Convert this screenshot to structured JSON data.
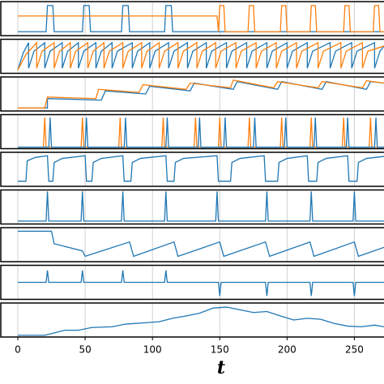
{
  "chart_data": [
    {
      "type": "line",
      "xlim": [
        0,
        272
      ],
      "ylim": [
        -0.15,
        1.15
      ],
      "xticks": [
        0,
        50,
        100,
        150,
        200,
        250
      ],
      "grid": true,
      "series": [
        {
          "color": "#1f77b4",
          "x": [
            0,
            21,
            22,
            26,
            27,
            48,
            49,
            53,
            54,
            77,
            78,
            82,
            83,
            109,
            110,
            114,
            115,
            272
          ],
          "values": [
            0,
            0,
            1,
            1,
            0,
            0,
            1,
            1,
            0,
            0,
            1,
            1,
            0,
            0,
            1,
            1,
            0,
            0
          ]
        },
        {
          "color": "#ff7f0e",
          "x": [
            0,
            148,
            149,
            150,
            153,
            154,
            171,
            172,
            175,
            176,
            195,
            196,
            199,
            200,
            217,
            218,
            221,
            222,
            242,
            243,
            246,
            247,
            264,
            265,
            268,
            269,
            272
          ],
          "values": [
            0.6,
            0.6,
            0,
            1,
            1,
            0,
            0,
            1,
            1,
            0,
            0,
            1,
            1,
            0,
            0,
            1,
            1,
            0,
            0,
            1,
            1,
            0,
            0,
            1,
            1,
            0,
            0
          ]
        }
      ]
    },
    {
      "type": "line",
      "xlim": [
        0,
        272
      ],
      "ylim": [
        0,
        1
      ],
      "xticks": [
        0,
        50,
        100,
        150,
        200,
        250
      ],
      "grid": true,
      "series": [
        {
          "color": "#1f77b4",
          "x": [
            0,
            4,
            8,
            8,
            12,
            20,
            20,
            24,
            33,
            33,
            37,
            45,
            45,
            49,
            58,
            58,
            62,
            70,
            70,
            74,
            85,
            85,
            89,
            98,
            98,
            102,
            112,
            112,
            116,
            126,
            126,
            130,
            140,
            140,
            144,
            155,
            155,
            159,
            170,
            170,
            174,
            185,
            185,
            189,
            200,
            200,
            204,
            215,
            215,
            219,
            232,
            232,
            236,
            248,
            248,
            252,
            265,
            265,
            269,
            272
          ],
          "values": [
            0.1,
            0.6,
            0.9,
            0.15,
            0.65,
            0.9,
            0.15,
            0.65,
            0.9,
            0.15,
            0.65,
            0.9,
            0.15,
            0.65,
            0.9,
            0.15,
            0.65,
            0.9,
            0.15,
            0.65,
            0.9,
            0.15,
            0.65,
            0.9,
            0.15,
            0.65,
            0.9,
            0.15,
            0.65,
            0.9,
            0.15,
            0.65,
            0.9,
            0.15,
            0.65,
            0.9,
            0.15,
            0.65,
            0.9,
            0.15,
            0.65,
            0.9,
            0.15,
            0.65,
            0.9,
            0.15,
            0.65,
            0.9,
            0.15,
            0.65,
            0.9,
            0.15,
            0.65,
            0.9,
            0.15,
            0.65,
            0.9,
            0.15,
            0.65,
            0.8
          ]
        },
        {
          "color": "#ff7f0e",
          "x": [
            0,
            6,
            14,
            14,
            18,
            27,
            27,
            31,
            39,
            39,
            43,
            52,
            52,
            56,
            64,
            64,
            68,
            78,
            78,
            82,
            92,
            92,
            96,
            105,
            105,
            109,
            119,
            119,
            123,
            133,
            133,
            137,
            147,
            147,
            151,
            162,
            162,
            166,
            177,
            177,
            181,
            192,
            192,
            196,
            207,
            207,
            211,
            223,
            223,
            227,
            240,
            240,
            244,
            256,
            256,
            260,
            272
          ],
          "values": [
            0.1,
            0.55,
            0.9,
            0.15,
            0.65,
            0.9,
            0.15,
            0.65,
            0.9,
            0.15,
            0.65,
            0.9,
            0.15,
            0.65,
            0.9,
            0.15,
            0.65,
            0.9,
            0.15,
            0.65,
            0.9,
            0.15,
            0.65,
            0.9,
            0.15,
            0.65,
            0.9,
            0.15,
            0.65,
            0.9,
            0.15,
            0.65,
            0.9,
            0.15,
            0.65,
            0.9,
            0.15,
            0.65,
            0.9,
            0.15,
            0.65,
            0.9,
            0.15,
            0.65,
            0.9,
            0.15,
            0.65,
            0.9,
            0.15,
            0.65,
            0.9,
            0.15,
            0.65,
            0.9,
            0.15,
            0.65,
            0.8
          ]
        }
      ]
    },
    {
      "type": "line",
      "xlim": [
        0,
        272
      ],
      "ylim": [
        -0.1,
        1
      ],
      "xticks": [
        0,
        50,
        100,
        150,
        200,
        250
      ],
      "grid": true,
      "series": [
        {
          "color": "#1f77b4",
          "x": [
            0,
            22,
            22,
            62,
            65,
            95,
            98,
            128,
            131,
            160,
            163,
            193,
            196,
            226,
            229,
            259,
            262,
            272
          ],
          "values": [
            0,
            0,
            0.3,
            0.25,
            0.55,
            0.45,
            0.7,
            0.55,
            0.8,
            0.6,
            0.85,
            0.6,
            0.85,
            0.6,
            0.85,
            0.6,
            0.85,
            0.8
          ]
        },
        {
          "color": "#ff7f0e",
          "x": [
            0,
            20,
            22,
            58,
            60,
            90,
            93,
            125,
            128,
            158,
            160,
            190,
            193,
            223,
            226,
            256,
            259,
            272
          ],
          "values": [
            0,
            0,
            0.35,
            0.3,
            0.6,
            0.5,
            0.75,
            0.6,
            0.8,
            0.65,
            0.9,
            0.65,
            0.85,
            0.65,
            0.85,
            0.65,
            0.88,
            0.8
          ]
        }
      ]
    },
    {
      "type": "line",
      "xlim": [
        0,
        272
      ],
      "ylim": [
        -0.05,
        1.1
      ],
      "xticks": [
        0,
        50,
        100,
        150,
        200,
        250
      ],
      "grid": true,
      "series": [
        {
          "color": "#ff7f0e",
          "x": [
            0,
            19,
            20,
            21,
            47,
            48,
            49,
            75,
            76,
            77,
            107,
            108,
            109,
            131,
            132,
            133,
            149,
            150,
            151,
            171,
            172,
            173,
            195,
            196,
            197,
            217,
            218,
            219,
            241,
            242,
            243,
            261,
            262,
            263,
            272
          ],
          "values": [
            0,
            0,
            1,
            0,
            0,
            1,
            0,
            0,
            1,
            0,
            0,
            1,
            0,
            0,
            1,
            0,
            0,
            1,
            0,
            0,
            1,
            0,
            0,
            1,
            0,
            0,
            1,
            0,
            0,
            1,
            0,
            0,
            1,
            0,
            0
          ]
        },
        {
          "color": "#1f77b4",
          "x": [
            0,
            23,
            24,
            25,
            50,
            51,
            52,
            79,
            80,
            81,
            110,
            111,
            112,
            134,
            135,
            136,
            153,
            154,
            155,
            175,
            176,
            177,
            198,
            199,
            200,
            220,
            221,
            222,
            244,
            245,
            246,
            265,
            266,
            267,
            272
          ],
          "values": [
            0,
            0,
            1,
            0,
            0,
            1,
            0,
            0,
            1,
            0,
            0,
            1,
            0,
            0,
            1,
            0,
            0,
            1,
            0,
            0,
            1,
            0,
            0,
            1,
            0,
            0,
            1,
            0,
            0,
            1,
            0,
            0,
            1,
            0,
            0
          ]
        }
      ]
    },
    {
      "type": "line",
      "xlim": [
        0,
        272
      ],
      "ylim": [
        0,
        1
      ],
      "xticks": [
        0,
        50,
        100,
        150,
        200,
        250
      ],
      "grid": true,
      "series": [
        {
          "color": "#1f77b4",
          "x": [
            0,
            6,
            7,
            13,
            22,
            23,
            26,
            27,
            33,
            50,
            51,
            55,
            56,
            62,
            78,
            79,
            84,
            85,
            91,
            110,
            111,
            116,
            117,
            123,
            148,
            149,
            158,
            159,
            165,
            183,
            184,
            193,
            194,
            200,
            215,
            216,
            222,
            223,
            229,
            245,
            246,
            252,
            253,
            259,
            272
          ],
          "values": [
            0.15,
            0.15,
            0.75,
            0.85,
            0.9,
            0.15,
            0.15,
            0.7,
            0.82,
            0.9,
            0.15,
            0.15,
            0.7,
            0.82,
            0.9,
            0.15,
            0.15,
            0.7,
            0.82,
            0.9,
            0.15,
            0.15,
            0.7,
            0.82,
            0.9,
            0.15,
            0.15,
            0.7,
            0.82,
            0.9,
            0.15,
            0.15,
            0.7,
            0.82,
            0.9,
            0.15,
            0.15,
            0.7,
            0.82,
            0.9,
            0.15,
            0.15,
            0.7,
            0.82,
            0.88
          ]
        }
      ]
    },
    {
      "type": "line",
      "xlim": [
        0,
        272
      ],
      "ylim": [
        -0.1,
        1.05
      ],
      "xticks": [
        0,
        50,
        100,
        150,
        200,
        250
      ],
      "grid": true,
      "series": [
        {
          "color": "#1f77b4",
          "x": [
            0,
            21,
            22,
            23,
            47,
            48,
            49,
            77,
            78,
            79,
            109,
            110,
            111,
            147,
            148,
            149,
            184,
            185,
            186,
            217,
            218,
            219,
            249,
            250,
            251,
            272
          ],
          "values": [
            0,
            0,
            1,
            0,
            0,
            1,
            0,
            0,
            1,
            0,
            0,
            1,
            0,
            0,
            1,
            0,
            0,
            1,
            0,
            0,
            1,
            0,
            0,
            1,
            0,
            0
          ]
        }
      ]
    },
    {
      "type": "line",
      "xlim": [
        0,
        272
      ],
      "ylim": [
        0.05,
        1
      ],
      "xticks": [
        0,
        50,
        100,
        150,
        200,
        250
      ],
      "grid": true,
      "series": [
        {
          "color": "#1f77b4",
          "x": [
            0,
            25,
            27,
            48,
            50,
            83,
            86,
            116,
            119,
            150,
            153,
            184,
            187,
            217,
            220,
            250,
            253,
            272
          ],
          "values": [
            0.9,
            0.9,
            0.55,
            0.35,
            0.2,
            0.6,
            0.2,
            0.6,
            0.2,
            0.6,
            0.2,
            0.6,
            0.2,
            0.6,
            0.2,
            0.6,
            0.2,
            0.45
          ]
        }
      ]
    },
    {
      "type": "line",
      "xlim": [
        0,
        272
      ],
      "ylim": [
        0,
        1
      ],
      "xticks": [
        0,
        50,
        100,
        150,
        200,
        250
      ],
      "grid": true,
      "series": [
        {
          "color": "#1f77b4",
          "x": [
            0,
            21,
            22,
            23,
            47,
            48,
            49,
            77,
            78,
            79,
            109,
            110,
            111,
            149,
            150,
            151,
            184,
            185,
            186,
            217,
            218,
            219,
            249,
            250,
            251,
            272
          ],
          "values": [
            0.5,
            0.5,
            0.85,
            0.5,
            0.5,
            0.85,
            0.5,
            0.5,
            0.85,
            0.5,
            0.5,
            0.85,
            0.5,
            0.5,
            0.1,
            0.5,
            0.5,
            0.1,
            0.5,
            0.5,
            0.1,
            0.5,
            0.5,
            0.1,
            0.5,
            0.5
          ]
        }
      ]
    },
    {
      "type": "line",
      "xlim": [
        0,
        272
      ],
      "ylim": [
        0,
        1
      ],
      "xticks": [
        0,
        50,
        100,
        150,
        200,
        250
      ],
      "grid": true,
      "xlabel": "t",
      "series": [
        {
          "color": "#1f77b4",
          "x": [
            0,
            20,
            25,
            35,
            45,
            55,
            70,
            80,
            95,
            105,
            115,
            125,
            135,
            145,
            155,
            165,
            175,
            185,
            195,
            205,
            215,
            225,
            235,
            245,
            255,
            265,
            272
          ],
          "values": [
            0.05,
            0.05,
            0.1,
            0.2,
            0.2,
            0.28,
            0.3,
            0.38,
            0.42,
            0.45,
            0.55,
            0.62,
            0.7,
            0.85,
            0.88,
            0.8,
            0.72,
            0.75,
            0.62,
            0.5,
            0.55,
            0.52,
            0.4,
            0.32,
            0.3,
            0.35,
            0.3
          ]
        }
      ]
    }
  ]
}
